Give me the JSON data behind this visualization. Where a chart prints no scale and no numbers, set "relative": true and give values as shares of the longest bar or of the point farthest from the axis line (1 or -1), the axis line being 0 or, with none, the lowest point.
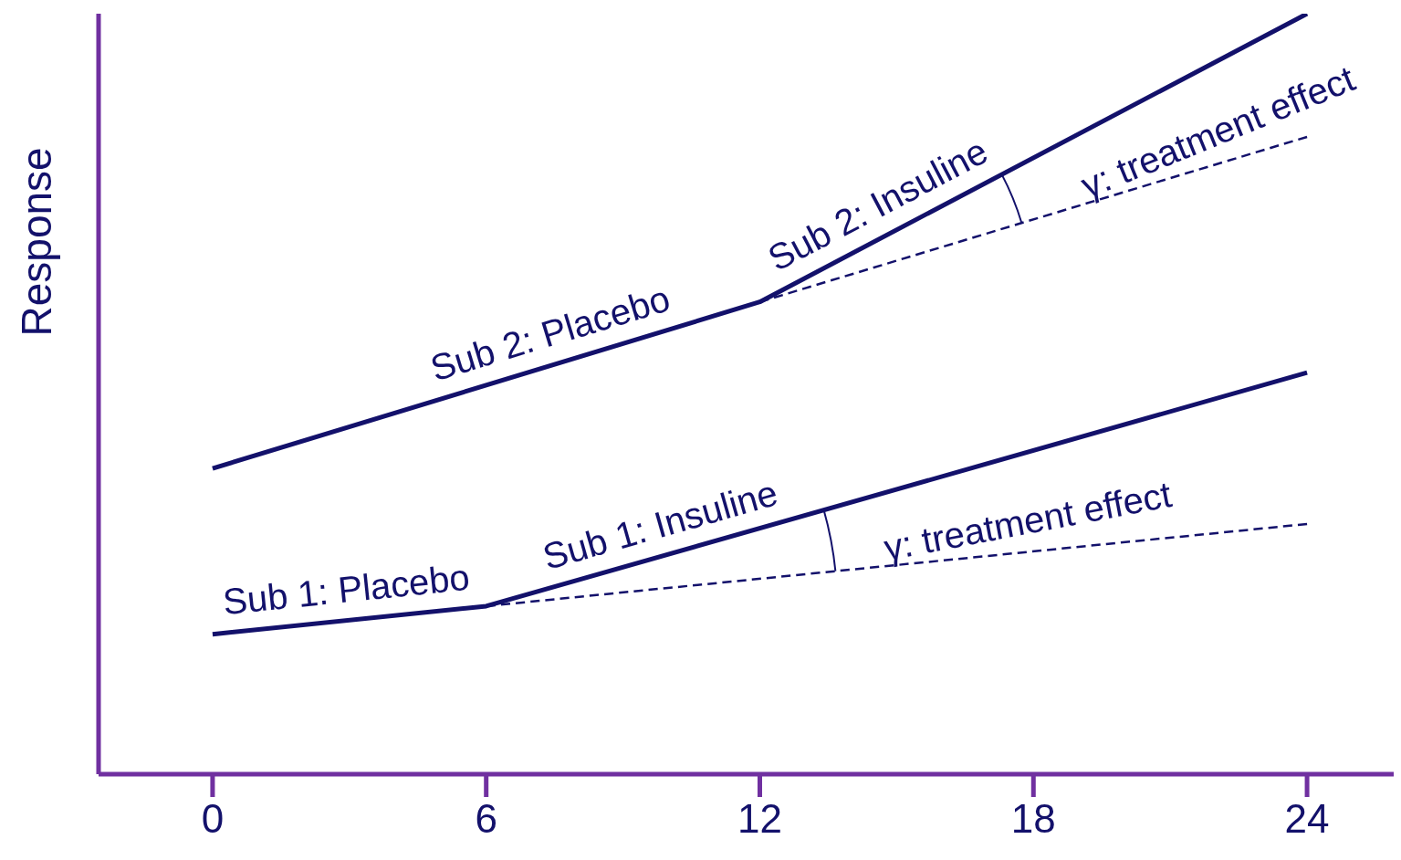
{
  "chart_data": {
    "type": "line",
    "ylabel": "Response",
    "relative": true,
    "xlim": [
      -2.5,
      25.9
    ],
    "xticks": [
      0,
      6,
      12,
      18,
      24
    ],
    "series": [
      {
        "color": "#13116b",
        "x": [
          0,
          6,
          24
        ],
        "values": [
          0.184,
          0.221,
          0.528
        ]
      },
      {
        "color": "#13116b",
        "x": [
          6,
          24
        ],
        "values": [
          0.221,
          0.329
        ],
        "line_style": "dashed"
      },
      {
        "color": "#13116b",
        "x": [
          0,
          12,
          24
        ],
        "values": [
          0.402,
          0.621,
          1.0
        ]
      },
      {
        "color": "#13116b",
        "x": [
          12,
          24
        ],
        "values": [
          0.621,
          0.838
        ],
        "line_style": "dashed"
      }
    ],
    "annotations": [
      {
        "text": "Sub 1: Placebo",
        "x": 3,
        "y": 0.2025
      },
      {
        "text": "Sub 1: Insuline",
        "x": 10,
        "y": 0.289
      },
      {
        "text": "Sub 2: Placebo",
        "x": 7.6,
        "y": 0.541
      },
      {
        "text": "Sub 2: Insuline",
        "x": 14.9,
        "y": 0.713
      },
      {
        "text": "γ: treatment effect",
        "x": 18,
        "y": 0.293
      },
      {
        "text": "γ: treatment effect",
        "x": 22.3,
        "y": 0.807
      }
    ]
  }
}
